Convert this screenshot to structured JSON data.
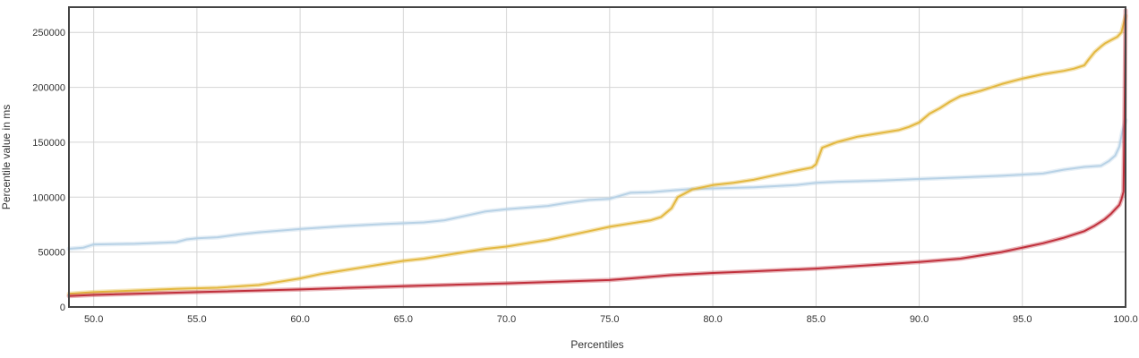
{
  "chart_data": {
    "type": "line",
    "xlabel": "Percentiles",
    "ylabel": "Percentile value in ms",
    "xlim": [
      48.8,
      100.0
    ],
    "ylim": [
      0,
      273000
    ],
    "x_ticks": [
      50.0,
      55.0,
      60.0,
      65.0,
      70.0,
      75.0,
      80.0,
      85.0,
      90.0,
      95.0,
      100.0
    ],
    "x_tick_labels": [
      "50.0",
      "55.0",
      "60.0",
      "65.0",
      "70.0",
      "75.0",
      "80.0",
      "85.0",
      "90.0",
      "95.0",
      "100.0"
    ],
    "y_ticks": [
      0,
      50000,
      100000,
      150000,
      200000,
      250000
    ],
    "y_tick_labels": [
      "0",
      "50000",
      "100000",
      "150000",
      "200000",
      "250000"
    ],
    "grid": true,
    "series": [
      {
        "color": "#b8d2e6",
        "x": [
          48.8,
          49.5,
          50.0,
          52.0,
          54.0,
          54.5,
          55.0,
          56.0,
          57.0,
          58.0,
          60.0,
          62.0,
          64.0,
          66.0,
          67.0,
          68.0,
          69.0,
          70.0,
          72.0,
          73.0,
          74.0,
          75.0,
          76.0,
          77.0,
          78.0,
          79.0,
          80.0,
          82.0,
          84.0,
          85.0,
          86.0,
          88.0,
          90.0,
          92.0,
          94.0,
          95.0,
          96.0,
          97.0,
          98.0,
          98.8,
          99.2,
          99.5,
          99.7,
          99.85,
          100.0
        ],
        "y": [
          53000,
          54000,
          57000,
          57500,
          59000,
          61500,
          62500,
          63500,
          66000,
          68000,
          71000,
          73500,
          75500,
          77000,
          79000,
          83000,
          87000,
          89000,
          92000,
          95000,
          97500,
          98500,
          104000,
          104500,
          106000,
          107500,
          108000,
          109000,
          111000,
          113000,
          114000,
          115000,
          116500,
          118000,
          119500,
          120500,
          121500,
          125000,
          127500,
          128500,
          133000,
          138000,
          146000,
          160000,
          170000
        ]
      },
      {
        "color": "#e3b840",
        "x": [
          48.8,
          50.0,
          52.0,
          54.0,
          56.0,
          58.0,
          59.0,
          60.0,
          61.0,
          62.0,
          63.0,
          64.0,
          65.0,
          66.0,
          67.0,
          68.0,
          69.0,
          70.0,
          71.0,
          72.0,
          72.5,
          73.0,
          74.0,
          75.0,
          76.0,
          77.0,
          77.5,
          78.0,
          78.3,
          79.0,
          80.0,
          81.0,
          82.0,
          83.0,
          84.0,
          84.8,
          85.0,
          85.3,
          86.0,
          87.0,
          88.0,
          89.0,
          89.5,
          90.0,
          90.5,
          91.0,
          91.5,
          92.0,
          93.0,
          94.0,
          95.0,
          96.0,
          97.0,
          97.5,
          98.0,
          98.2,
          98.5,
          98.8,
          99.0,
          99.3,
          99.6,
          99.8,
          100.0
        ],
        "y": [
          12000,
          13500,
          15000,
          16500,
          17500,
          20000,
          23000,
          26000,
          30000,
          33000,
          36000,
          39000,
          42000,
          44000,
          47000,
          50000,
          53000,
          55000,
          58000,
          61000,
          63000,
          65000,
          69000,
          73000,
          76000,
          79000,
          82000,
          90000,
          100000,
          107000,
          111000,
          113000,
          116000,
          120000,
          124000,
          127000,
          130000,
          145000,
          150000,
          155000,
          158000,
          161000,
          164000,
          168000,
          176000,
          181000,
          187000,
          192000,
          197000,
          203000,
          208000,
          212000,
          215000,
          217000,
          220000,
          225000,
          232000,
          237000,
          240000,
          243000,
          246000,
          250000,
          265000
        ]
      },
      {
        "color": "#c0303c",
        "x": [
          48.8,
          50.0,
          55.0,
          60.0,
          65.0,
          70.0,
          75.0,
          76.0,
          78.0,
          80.0,
          82.0,
          85.0,
          88.0,
          90.0,
          92.0,
          94.0,
          95.0,
          96.0,
          97.0,
          98.0,
          98.5,
          99.0,
          99.3,
          99.5,
          99.7,
          99.8,
          99.9,
          99.95,
          100.0
        ],
        "y": [
          10000,
          11000,
          13500,
          16000,
          19000,
          21500,
          24500,
          26000,
          29000,
          31000,
          32500,
          35000,
          38500,
          41000,
          44000,
          50000,
          54000,
          58000,
          63000,
          69000,
          74000,
          80000,
          85000,
          89000,
          93000,
          98000,
          105000,
          170000,
          270000
        ]
      }
    ]
  }
}
